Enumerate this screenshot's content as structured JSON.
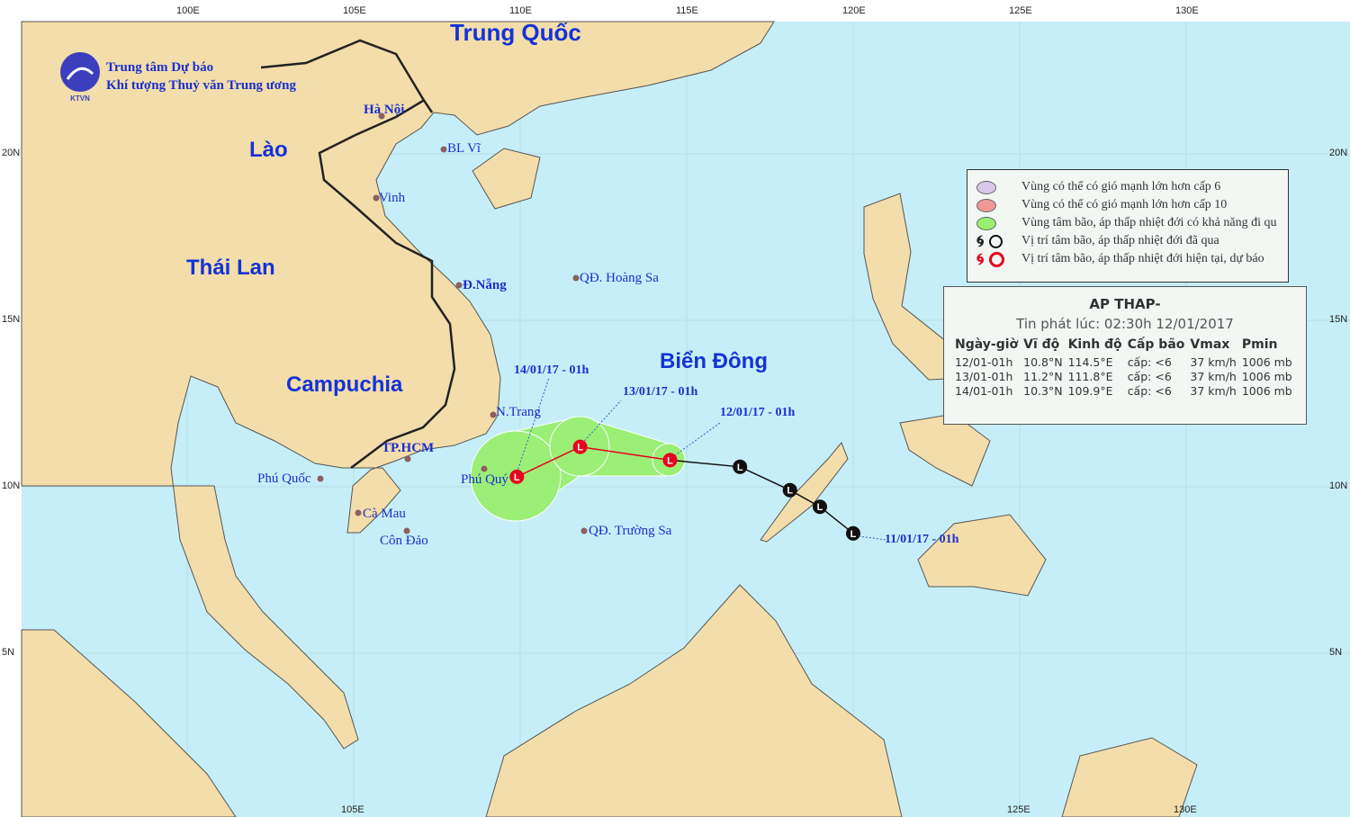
{
  "header": {
    "org_line1": "Trung tâm Dự báo",
    "org_line2": "Khí tượng Thuỷ văn Trung ương",
    "logo_text": "KTVN"
  },
  "axes": {
    "lon_top": [
      "100E",
      "105E",
      "110E",
      "115E",
      "120E",
      "125E",
      "130E"
    ],
    "lon_bottom": [
      "105E",
      "125E",
      "130E"
    ],
    "lat_right": [
      "20N",
      "15N",
      "10N",
      "5N"
    ],
    "lat_left": [
      "20N",
      "15N",
      "10N",
      "5N"
    ]
  },
  "places": {
    "countries": [
      "Trung Quốc",
      "Lào",
      "Thái Lan",
      "Campuchia",
      "Biển Đông"
    ],
    "hanoi": "Hà Nội",
    "blvi": "BL Vĩ",
    "vinh": "Vinh",
    "danang": "Đ.Nẵng",
    "hoangsa": "QĐ. Hoàng Sa",
    "ntrang": "N.Trang",
    "tphcm": "TP.HCM",
    "phuquoc": "Phú Quốc",
    "phuquy": "Phú Quý",
    "camau": "Cà Mau",
    "condao": "Côn Đảo",
    "truongsa": "QĐ. Trường Sa"
  },
  "track": {
    "past_labels": [
      "11/01/17 - 01h"
    ],
    "forecast_labels": [
      "12/01/17 - 01h",
      "13/01/17 - 01h",
      "14/01/17 - 01h"
    ],
    "past_points": [
      {
        "lon": 116.6,
        "lat": 10.6
      },
      {
        "lon": 118.1,
        "lat": 9.9
      },
      {
        "lon": 119.0,
        "lat": 9.4
      },
      {
        "lon": 120.0,
        "lat": 8.6
      }
    ],
    "forecast_points": [
      {
        "time": "12/01-01h",
        "lon": 114.5,
        "lat": 10.8
      },
      {
        "time": "13/01-01h",
        "lon": 111.8,
        "lat": 11.2
      },
      {
        "time": "14/01-01h",
        "lon": 109.9,
        "lat": 10.3
      }
    ],
    "symbol": "L",
    "colors": {
      "past": "#111111",
      "forecast": "#e8001c",
      "cone": "#99f070",
      "track_line": "#e8001c"
    }
  },
  "legend": {
    "items": [
      {
        "label": "Vùng có thể có gió mạnh lớn hơn cấp 6",
        "color": "#d8c8ec"
      },
      {
        "label": "Vùng có thể có gió mạnh lớn hơn cấp 10",
        "color": "#f09898"
      },
      {
        "label": "Vùng tâm bão, áp thấp nhiệt đới có khả năng đi qu",
        "color": "#99f070"
      },
      {
        "label": "Vị trí tâm bão, áp thấp nhiệt đới đã qua",
        "icon": "black-typhoon-and-circle"
      },
      {
        "label": "Vị trí tâm bão, áp thấp nhiệt đới hiện tại, dự báo",
        "icon": "red-typhoon-and-circle"
      }
    ]
  },
  "info": {
    "title": "AP THAP-",
    "issued": "Tin phát lúc: 02:30h 12/01/2017",
    "columns": [
      "Ngày-giờ",
      "Vĩ độ",
      "Kinh độ",
      "Cấp bão",
      "Vmax",
      "Pmin"
    ],
    "rows": [
      [
        "12/01-01h",
        "10.8°N",
        "114.5°E",
        "cấp: <6",
        "37 km/h",
        "1006 mb"
      ],
      [
        "13/01-01h",
        "11.2°N",
        "111.8°E",
        "cấp: <6",
        "37 km/h",
        "1006 mb"
      ],
      [
        "14/01-01h",
        "10.3°N",
        "109.9°E",
        "cấp: <6",
        "37 km/h",
        "1006 mb"
      ]
    ]
  },
  "colors": {
    "sea": "#c6eef8",
    "land": "#f3ddaa",
    "border": "#333333"
  }
}
